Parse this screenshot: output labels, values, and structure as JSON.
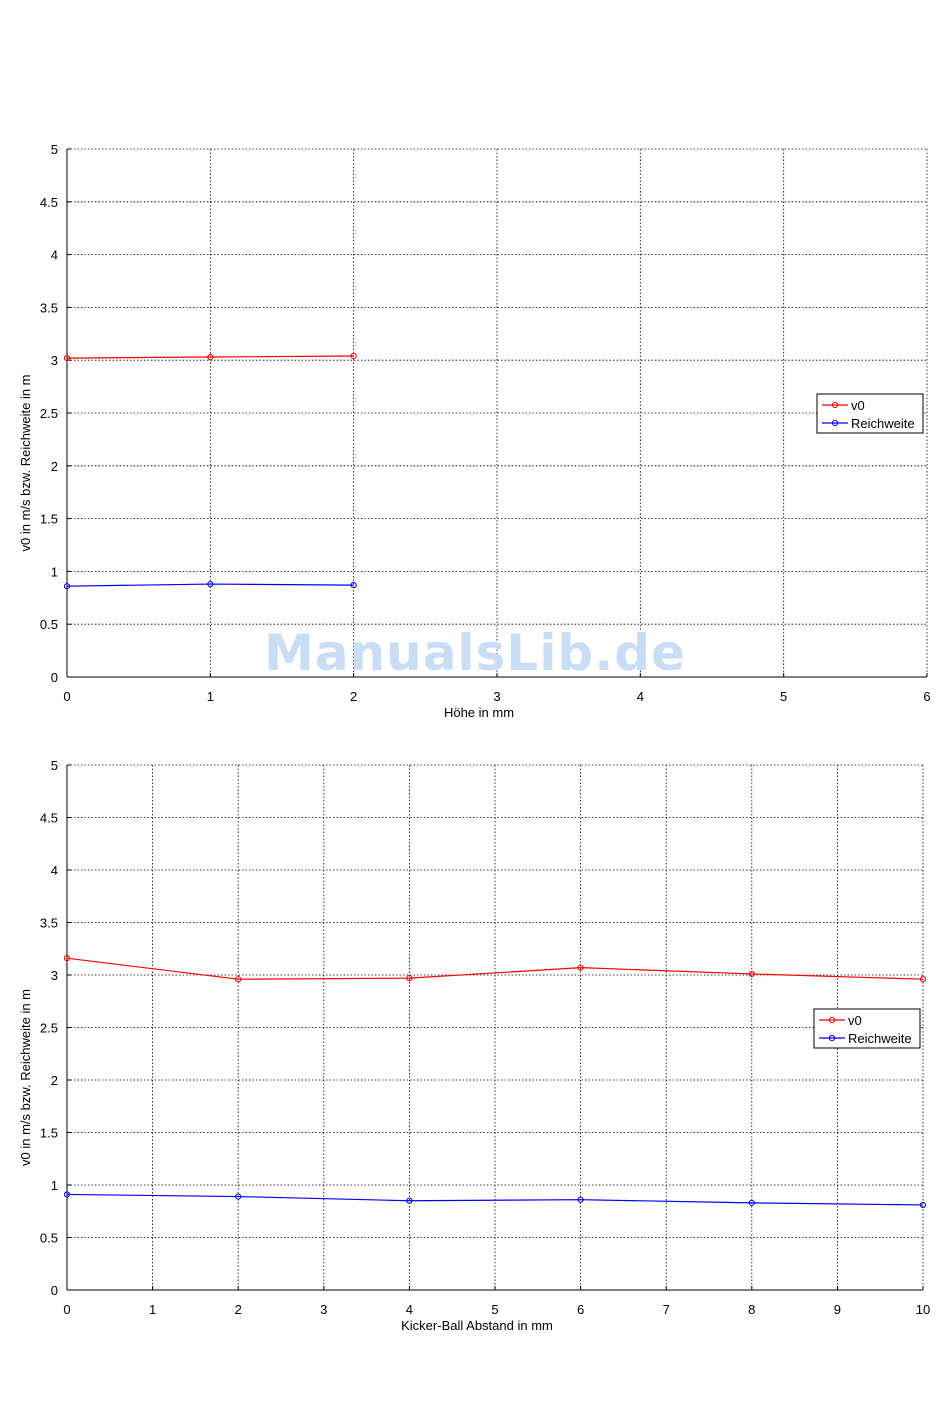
{
  "watermark": "ManualsLib.de",
  "chart_data": [
    {
      "type": "line",
      "title": "",
      "xlabel": "Höhe in mm",
      "ylabel": "v0 in m/s bzw. Reichweite in m",
      "xlim": [
        0,
        6
      ],
      "ylim": [
        0,
        5
      ],
      "xticks": [
        0,
        1,
        2,
        3,
        4,
        5,
        6
      ],
      "yticks": [
        0,
        0.5,
        1,
        1.5,
        2,
        2.5,
        3,
        3.5,
        4,
        4.5,
        5
      ],
      "grid": true,
      "legend_position": "right",
      "series": [
        {
          "name": "v0",
          "color": "#ff0000",
          "x": [
            0,
            1,
            2
          ],
          "y": [
            3.02,
            3.03,
            3.04
          ]
        },
        {
          "name": "Reichweite",
          "color": "#0000ff",
          "x": [
            0,
            1,
            2
          ],
          "y": [
            0.86,
            0.88,
            0.87
          ]
        }
      ]
    },
    {
      "type": "line",
      "title": "",
      "xlabel": "Kicker-Ball Abstand in mm",
      "ylabel": "v0 in m/s bzw. Reichweite in m",
      "xlim": [
        0,
        10
      ],
      "ylim": [
        0,
        5
      ],
      "xticks": [
        0,
        1,
        2,
        3,
        4,
        5,
        6,
        7,
        8,
        9,
        10
      ],
      "yticks": [
        0,
        0.5,
        1,
        1.5,
        2,
        2.5,
        3,
        3.5,
        4,
        4.5,
        5
      ],
      "grid": true,
      "legend_position": "right",
      "series": [
        {
          "name": "v0",
          "color": "#ff0000",
          "x": [
            0,
            2,
            4,
            6,
            8,
            10
          ],
          "y": [
            3.16,
            2.96,
            2.97,
            3.07,
            3.01,
            2.96
          ]
        },
        {
          "name": "Reichweite",
          "color": "#0000ff",
          "x": [
            0,
            2,
            4,
            6,
            8,
            10
          ],
          "y": [
            0.91,
            0.89,
            0.85,
            0.86,
            0.83,
            0.81
          ]
        }
      ]
    }
  ]
}
